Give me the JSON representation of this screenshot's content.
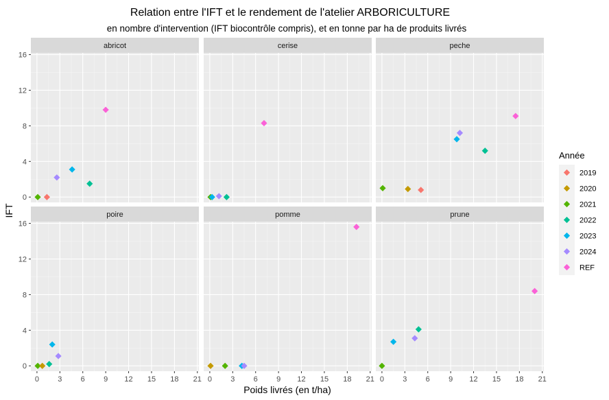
{
  "chart_data": {
    "type": "scatter",
    "title": "Relation entre l'IFT et le rendement de l'atelier ARBORICULTURE",
    "subtitle": "en nombre d'intervention (IFT biocontrôle compris), et en tonne par ha de produits livrés",
    "xlabel": "Poids livrés (en t/ha)",
    "ylabel": "IFT",
    "xlim": [
      -0.8,
      21.2
    ],
    "ylim": [
      -0.6,
      16.2
    ],
    "xticks": [
      0,
      3,
      6,
      9,
      12,
      15,
      18,
      21
    ],
    "yticks": [
      0,
      4,
      8,
      12,
      16
    ],
    "grid": true,
    "legend": {
      "title": "Année",
      "position": "right",
      "entries": [
        "2019",
        "2020",
        "2021",
        "2022",
        "2023",
        "2024",
        "REF"
      ]
    },
    "series_colors": {
      "2019": "#F8766D",
      "2020": "#C49A00",
      "2021": "#53B400",
      "2022": "#00C094",
      "2023": "#00B6EB",
      "2024": "#A58AFF",
      "REF": "#FB61D7"
    },
    "panels": [
      {
        "name": "abricot",
        "points": [
          {
            "series": "2021",
            "x": 0.1,
            "y": 0.0
          },
          {
            "series": "2019",
            "x": 1.3,
            "y": 0.0
          },
          {
            "series": "2024",
            "x": 2.6,
            "y": 2.2
          },
          {
            "series": "2023",
            "x": 4.6,
            "y": 3.1
          },
          {
            "series": "2022",
            "x": 6.9,
            "y": 1.5
          },
          {
            "series": "REF",
            "x": 9.0,
            "y": 9.8
          }
        ]
      },
      {
        "name": "cerise",
        "points": [
          {
            "series": "2021",
            "x": 0.1,
            "y": 0.0
          },
          {
            "series": "2023",
            "x": 0.3,
            "y": 0.0
          },
          {
            "series": "2024",
            "x": 1.2,
            "y": 0.1
          },
          {
            "series": "2022",
            "x": 2.2,
            "y": 0.0
          },
          {
            "series": "REF",
            "x": 7.1,
            "y": 8.3
          }
        ]
      },
      {
        "name": "peche",
        "points": [
          {
            "series": "2021",
            "x": 0.1,
            "y": 1.0
          },
          {
            "series": "2020",
            "x": 3.4,
            "y": 0.9
          },
          {
            "series": "2019",
            "x": 5.1,
            "y": 0.8
          },
          {
            "series": "2023",
            "x": 9.8,
            "y": 6.5
          },
          {
            "series": "2024",
            "x": 10.2,
            "y": 7.2
          },
          {
            "series": "2022",
            "x": 13.5,
            "y": 5.2
          },
          {
            "series": "REF",
            "x": 17.5,
            "y": 9.1
          }
        ]
      },
      {
        "name": "poire",
        "points": [
          {
            "series": "2021",
            "x": 0.1,
            "y": 0.0
          },
          {
            "series": "2020",
            "x": 0.7,
            "y": 0.0
          },
          {
            "series": "2022",
            "x": 1.6,
            "y": 0.2
          },
          {
            "series": "2023",
            "x": 2.0,
            "y": 2.4
          },
          {
            "series": "2024",
            "x": 2.8,
            "y": 1.1
          }
        ]
      },
      {
        "name": "pomme",
        "points": [
          {
            "series": "2020",
            "x": 0.1,
            "y": 0.0
          },
          {
            "series": "2021",
            "x": 2.0,
            "y": 0.0
          },
          {
            "series": "2023",
            "x": 4.2,
            "y": 0.0
          },
          {
            "series": "2024",
            "x": 4.5,
            "y": 0.0
          },
          {
            "series": "REF",
            "x": 19.2,
            "y": 15.6
          }
        ]
      },
      {
        "name": "prune",
        "points": [
          {
            "series": "2021",
            "x": 0.0,
            "y": 0.0
          },
          {
            "series": "2023",
            "x": 1.5,
            "y": 2.7
          },
          {
            "series": "2024",
            "x": 4.3,
            "y": 3.1
          },
          {
            "series": "2022",
            "x": 4.8,
            "y": 4.1
          },
          {
            "series": "REF",
            "x": 20.0,
            "y": 8.4
          }
        ]
      }
    ]
  }
}
